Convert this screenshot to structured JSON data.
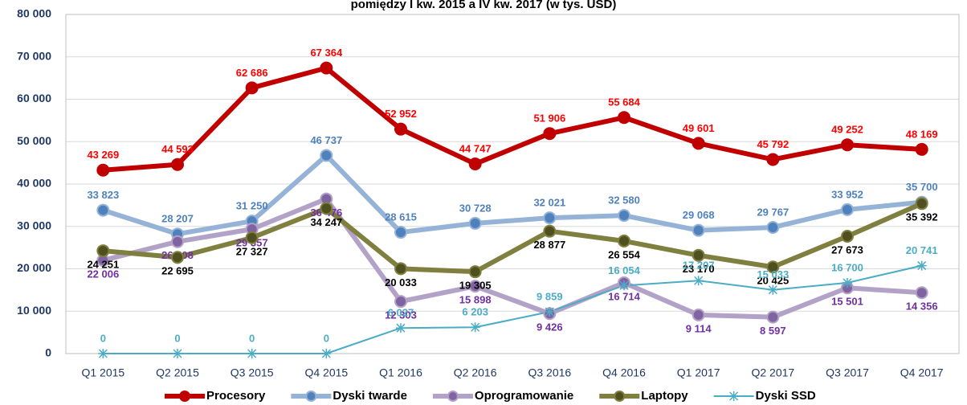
{
  "chart_data": {
    "type": "line",
    "title": "pomiędzy I kw. 2015 a IV kw. 2017 (w tys. USD)",
    "categories": [
      "Q1 2015",
      "Q2 2015",
      "Q3 2015",
      "Q4 2015",
      "Q1 2016",
      "Q2 2016",
      "Q3 2016",
      "Q4 2016",
      "Q1 2017",
      "Q2 2017",
      "Q3 2017",
      "Q4 2017"
    ],
    "ylim": [
      0,
      80000
    ],
    "yticks": [
      0,
      {
        "value": 10000,
        "label": "10 000"
      },
      {
        "value": 20000,
        "label": "20 000"
      },
      {
        "value": 30000,
        "label": "30 000"
      },
      {
        "value": 40000,
        "label": "40 000"
      },
      {
        "value": 50000,
        "label": "50 000"
      },
      {
        "value": 60000,
        "label": "60 000"
      },
      {
        "value": 70000,
        "label": "70 000"
      },
      {
        "value": 80000,
        "label": "80 000"
      }
    ],
    "grid": true,
    "legend": "bottom",
    "series": [
      {
        "name": "Procesory",
        "color": "#c00000",
        "values": [
          43269,
          44593,
          62686,
          67364,
          52952,
          44747,
          51906,
          55684,
          49601,
          45792,
          49252,
          48169
        ],
        "value_labels": [
          "43 269",
          "44 593",
          "62 686",
          "67 364",
          "52 952",
          "44 747",
          "51 906",
          "55 684",
          "49 601",
          "45 792",
          "49 252",
          "48 169"
        ]
      },
      {
        "name": "Dyski twarde",
        "color": "#4f81bd",
        "values": [
          33823,
          28207,
          31250,
          46737,
          28615,
          30728,
          32021,
          32580,
          29068,
          29767,
          33952,
          35700
        ],
        "value_labels": [
          "33 823",
          "28 207",
          "31 250",
          "46 737",
          "28 615",
          "30 728",
          "32 021",
          "32 580",
          "29 068",
          "29 767",
          "33 952",
          "35 700"
        ]
      },
      {
        "name": "Oprogramowanie",
        "color": "#7030a0",
        "values": [
          22006,
          26408,
          29357,
          36476,
          12303,
          15898,
          9426,
          16714,
          9114,
          8597,
          15501,
          14356
        ],
        "value_labels": [
          "22 006",
          "26 408",
          "29 357",
          "36 476",
          "12 303",
          "15 898",
          "9 426",
          "16 714",
          "9 114",
          "8 597",
          "15 501",
          "14 356"
        ]
      },
      {
        "name": "Laptopy",
        "color": "#4f4f1f",
        "values": [
          24251,
          22695,
          27327,
          34247,
          20033,
          19305,
          28877,
          26554,
          23170,
          20425,
          27673,
          35392
        ],
        "value_labels": [
          "24 251",
          "22 695",
          "27 327",
          "34 247",
          "20 033",
          "19 305",
          "28 877",
          "26 554",
          "23 170",
          "20 425",
          "27 673",
          "35 392"
        ]
      },
      {
        "name": "Dyski SSD",
        "color": "#4bacc6",
        "values": [
          0,
          0,
          0,
          0,
          6027,
          6203,
          9859,
          16054,
          17207,
          15033,
          16700,
          20741
        ],
        "value_labels": [
          "0",
          "0",
          "0",
          "0",
          "6 027",
          "6 203",
          "9 859",
          "16 054",
          "17 207",
          "15 033",
          "16 700",
          "20 741"
        ]
      }
    ]
  }
}
